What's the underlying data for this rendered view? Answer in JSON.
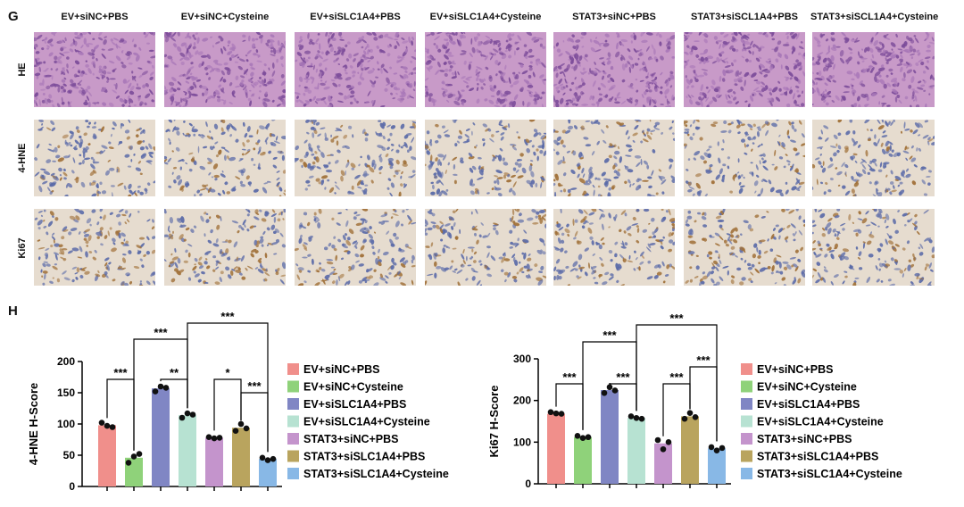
{
  "panels": {
    "top": "G",
    "bottom": "H"
  },
  "conditions": [
    "EV+siNC+PBS",
    "EV+siNC+Cysteine",
    "EV+siSLC1A4+PBS",
    "EV+siSLC1A4+Cysteine",
    "STAT3+siNC+PBS",
    "STAT3+siSCL1A4+PBS",
    "STAT3+siSCL1A4+Cysteine"
  ],
  "stains": [
    "HE",
    "4-HNE",
    "Ki67"
  ],
  "colors": {
    "series": [
      "#f08f8b",
      "#8fd27a",
      "#8086c4",
      "#b7e2d2",
      "#c494cc",
      "#b9a45e",
      "#88b8e6"
    ],
    "he_base": "#c89ac8",
    "ihc_base": "#e6dccf",
    "nuclei": "#5a6aa8",
    "brown": "#a07038"
  },
  "chart_data": [
    {
      "type": "bar",
      "ylabel": "4-HNE H-Score",
      "ylim": [
        0,
        200
      ],
      "yticks": [
        "0",
        "50",
        "100",
        "150",
        "200"
      ],
      "categories": [
        "EV+siNC+PBS",
        "EV+siNC+Cysteine",
        "EV+siSLC1A4+PBS",
        "EV+siSLC1A4+Cysteine",
        "STAT3+siNC+PBS",
        "STAT3+siSLC1A4+PBS",
        "STAT3+siSLC1A4+Cysteine"
      ],
      "values": [
        98,
        46,
        157,
        114,
        78,
        94,
        44
      ],
      "points": [
        [
          102,
          97,
          95
        ],
        [
          38,
          48,
          52
        ],
        [
          152,
          160,
          158
        ],
        [
          110,
          117,
          115
        ],
        [
          79,
          77,
          78
        ],
        [
          89,
          100,
          93
        ],
        [
          46,
          42,
          44
        ]
      ],
      "legend": "right",
      "significance": [
        {
          "from": 0,
          "to": 1,
          "label": "***",
          "level": 1
        },
        {
          "from": 2,
          "to": 3,
          "label": "**",
          "level": 1
        },
        {
          "from": 4,
          "to": 5,
          "label": "*",
          "level": 1
        },
        {
          "from": 5,
          "to": 6,
          "label": "***",
          "level": 2
        },
        {
          "from": 1,
          "to": 3,
          "label": "***",
          "level": 3
        },
        {
          "from": 3,
          "to": 6,
          "label": "***",
          "level": 4
        }
      ]
    },
    {
      "type": "bar",
      "ylabel": "Ki67 H-Score",
      "ylim": [
        0,
        300
      ],
      "yticks": [
        "0",
        "100",
        "200",
        "300"
      ],
      "categories": [
        "EV+siNC+PBS",
        "EV+siNC+Cysteine",
        "EV+siSLC1A4+PBS",
        "EV+siSLC1A4+Cysteine",
        "STAT3+siNC+PBS",
        "STAT3+siSLC1A4+PBS",
        "STAT3+siSLC1A4+Cysteine"
      ],
      "values": [
        168,
        112,
        225,
        158,
        97,
        162,
        85
      ],
      "points": [
        [
          172,
          169,
          168
        ],
        [
          115,
          110,
          112
        ],
        [
          218,
          232,
          224
        ],
        [
          162,
          158,
          156
        ],
        [
          105,
          83,
          100
        ],
        [
          156,
          170,
          160
        ],
        [
          88,
          80,
          86
        ]
      ],
      "legend": "right",
      "significance": [
        {
          "from": 0,
          "to": 1,
          "label": "***",
          "level": 1
        },
        {
          "from": 2,
          "to": 3,
          "label": "***",
          "level": 1
        },
        {
          "from": 4,
          "to": 5,
          "label": "***",
          "level": 1
        },
        {
          "from": 5,
          "to": 6,
          "label": "***",
          "level": 2
        },
        {
          "from": 1,
          "to": 3,
          "label": "***",
          "level": 3
        },
        {
          "from": 3,
          "to": 6,
          "label": "***",
          "level": 4
        }
      ]
    }
  ],
  "legend": [
    "EV+siNC+PBS",
    "EV+siNC+Cysteine",
    "EV+siSLC1A4+PBS",
    "EV+siSLC1A4+Cysteine",
    "STAT3+siNC+PBS",
    "STAT3+siSLC1A4+PBS",
    "STAT3+siSLC1A4+Cysteine"
  ]
}
